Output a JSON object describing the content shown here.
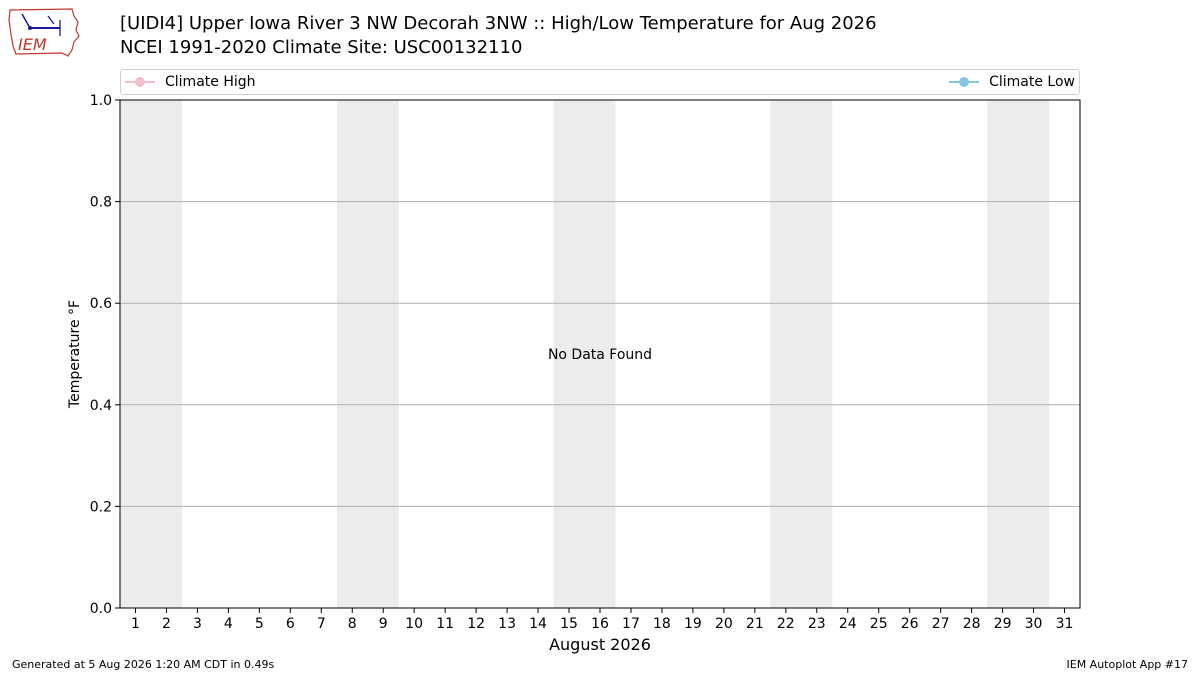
{
  "header": {
    "title_line1": "[UIDI4] Upper Iowa River 3 NW Decorah 3NW :: High/Low Temperature for Aug 2026",
    "title_line2": "NCEI 1991-2020 Climate Site: USC00132110"
  },
  "logo": {
    "text": "IEM",
    "icon": "iem-iowa-logo-icon"
  },
  "legend": {
    "items": [
      {
        "label": "Climate High",
        "color": "#f4bfcb",
        "placement": "top-left"
      },
      {
        "label": "Climate Low",
        "color": "#87c6e3",
        "placement": "top-right"
      }
    ]
  },
  "chart_data": {
    "type": "line",
    "title": "[UIDI4] Upper Iowa River 3 NW Decorah 3NW :: High/Low Temperature for Aug 2026",
    "subtitle": "NCEI 1991-2020 Climate Site: USC00132110",
    "xlabel": "August 2026",
    "ylabel": "Temperature °F",
    "x_ticks": [
      "1",
      "2",
      "3",
      "4",
      "5",
      "6",
      "7",
      "8",
      "9",
      "10",
      "11",
      "12",
      "13",
      "14",
      "15",
      "16",
      "17",
      "18",
      "19",
      "20",
      "21",
      "22",
      "23",
      "24",
      "25",
      "26",
      "27",
      "28",
      "29",
      "30",
      "31"
    ],
    "xlim": [
      0.5,
      31.5
    ],
    "ylim": [
      0.0,
      1.0
    ],
    "y_ticks": [
      "0.0",
      "0.2",
      "0.4",
      "0.6",
      "0.8",
      "1.0"
    ],
    "y_tick_values": [
      0.0,
      0.2,
      0.4,
      0.6,
      0.8,
      1.0
    ],
    "grid": "horizontal",
    "weekend_shading_days": [
      [
        1,
        2
      ],
      [
        8,
        9
      ],
      [
        15,
        16
      ],
      [
        22,
        23
      ],
      [
        29,
        30
      ]
    ],
    "shade_color": "#ececec",
    "series": [
      {
        "name": "Climate High",
        "color": "#f4bfcb",
        "values": []
      },
      {
        "name": "Climate Low",
        "color": "#87c6e3",
        "values": []
      }
    ],
    "annotation": "No Data Found"
  },
  "footer": {
    "generated": "Generated at 5 Aug 2026 1:20 AM CDT in 0.49s",
    "app": "IEM Autoplot App #17"
  }
}
